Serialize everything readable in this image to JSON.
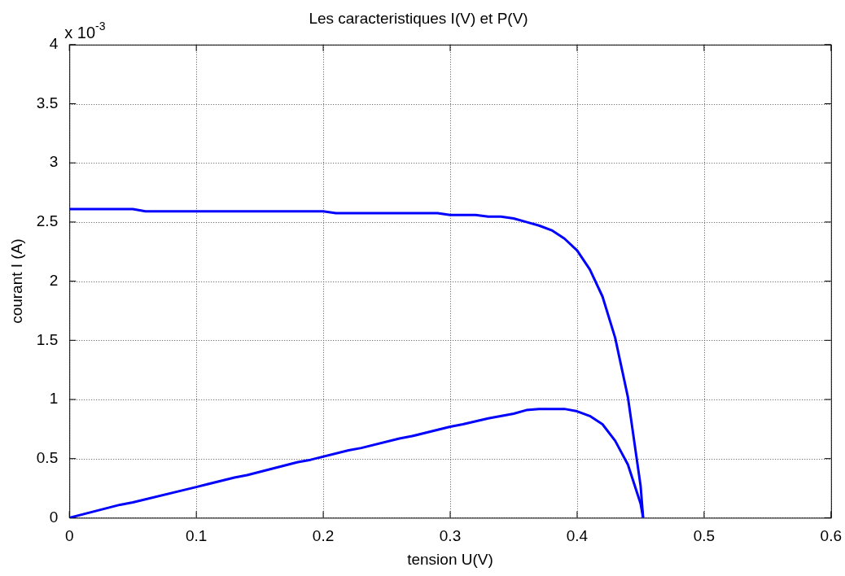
{
  "chart_data": {
    "type": "line",
    "title": "Les caracteristiques I(V) et P(V)",
    "xlabel": "tension U(V)",
    "ylabel": "courant I (A)",
    "annotations": [
      "x 10$^{-3}$"
    ],
    "xlim": [
      0,
      0.6
    ],
    "xticks": [
      0,
      0.1,
      0.2,
      0.3,
      0.4,
      0.5,
      0.6
    ],
    "ylim": [
      0,
      4
    ],
    "yticks": [
      0,
      0.5,
      1,
      1.5,
      2,
      2.5,
      3,
      3.5,
      4
    ],
    "grid": true,
    "legend": false,
    "marker": "none",
    "line_style": "solid",
    "series": [
      {
        "color": "#0000ff",
        "x": [
          0,
          0.05,
          0.06,
          0.2,
          0.21,
          0.29,
          0.3,
          0.32,
          0.33,
          0.34,
          0.35,
          0.36,
          0.37,
          0.38,
          0.39,
          0.4,
          0.41,
          0.42,
          0.43,
          0.44,
          0.45,
          0.452
        ],
        "values": [
          2.61,
          2.61,
          2.59,
          2.59,
          2.575,
          2.575,
          2.56,
          2.56,
          2.545,
          2.545,
          2.53,
          2.5,
          2.47,
          2.43,
          2.36,
          2.26,
          2.1,
          1.87,
          1.52,
          1.02,
          0.27,
          0
        ]
      },
      {
        "color": "#0000ff",
        "x": [
          0,
          0.04,
          0.05,
          0.1,
          0.13,
          0.14,
          0.18,
          0.19,
          0.22,
          0.23,
          0.26,
          0.27,
          0.3,
          0.31,
          0.33,
          0.35,
          0.36,
          0.37,
          0.38,
          0.39,
          0.4,
          0.41,
          0.42,
          0.43,
          0.44,
          0.45,
          0.452
        ],
        "values": [
          0,
          0.11,
          0.13,
          0.26,
          0.34,
          0.36,
          0.47,
          0.49,
          0.57,
          0.59,
          0.67,
          0.69,
          0.77,
          0.79,
          0.84,
          0.88,
          0.91,
          0.92,
          0.92,
          0.92,
          0.9,
          0.86,
          0.79,
          0.65,
          0.45,
          0.12,
          0
        ]
      }
    ]
  }
}
